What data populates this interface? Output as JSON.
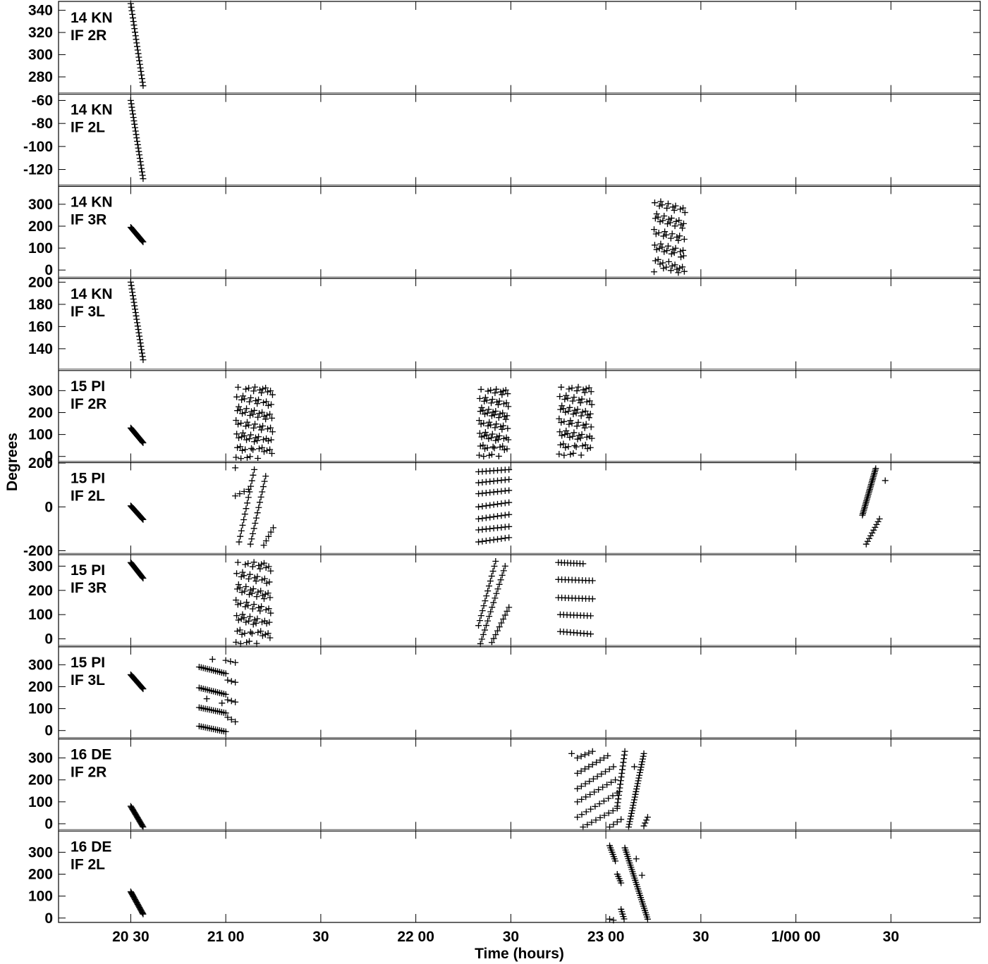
{
  "chart_data": {
    "type": "scatter",
    "xlabel": "Time (hours)",
    "ylabel": "Degrees",
    "x_units": "hours (day 0 = 0h)",
    "xlim": [
      20.12,
      24.97
    ],
    "x_ticks": [
      {
        "x": 20.5,
        "label": "20 30"
      },
      {
        "x": 21.0,
        "label": "21 00"
      },
      {
        "x": 21.5,
        "label": "30"
      },
      {
        "x": 22.0,
        "label": "22 00"
      },
      {
        "x": 22.5,
        "label": "30"
      },
      {
        "x": 23.0,
        "label": "23 00"
      },
      {
        "x": 23.5,
        "label": "30"
      },
      {
        "x": 24.0,
        "label": "1/00 00"
      },
      {
        "x": 24.5,
        "label": "30"
      }
    ],
    "marker": "+",
    "grid": false,
    "panels": [
      {
        "label1": "14 KN",
        "label2": "IF 2R",
        "ylim": [
          265,
          348
        ],
        "yticks": [
          280,
          300,
          320,
          340
        ],
        "segments": [
          {
            "x0": 20.5,
            "y0": 346,
            "x1": 20.565,
            "y1": 272,
            "n": 24
          }
        ],
        "clusters": []
      },
      {
        "label1": "14 KN",
        "label2": "IF 2L",
        "ylim": [
          -134,
          -54
        ],
        "yticks": [
          -120,
          -100,
          -80,
          -60
        ],
        "segments": [
          {
            "x0": 20.5,
            "y0": -60,
            "x1": 20.565,
            "y1": -128,
            "n": 24
          }
        ],
        "clusters": []
      },
      {
        "label1": "14 KN",
        "label2": "IF 3R",
        "ylim": [
          -35,
          385
        ],
        "yticks": [
          0,
          100,
          200,
          300
        ],
        "segments": [
          {
            "x0": 20.5,
            "y0": 195,
            "x1": 20.565,
            "y1": 128,
            "n": 22
          }
        ],
        "clusters": [
          {
            "x0": 23.25,
            "x1": 23.42,
            "ymin": -15,
            "ymax": 325,
            "cols": 8,
            "rows": 9
          }
        ]
      },
      {
        "label1": "14 KN",
        "label2": "IF 3L",
        "ylim": [
          121,
          204
        ],
        "yticks": [
          140,
          160,
          180,
          200
        ],
        "segments": [
          {
            "x0": 20.5,
            "y0": 200,
            "x1": 20.565,
            "y1": 130,
            "n": 24
          }
        ],
        "clusters": []
      },
      {
        "label1": "15 PI",
        "label2": "IF 2R",
        "ylim": [
          -25,
          395
        ],
        "yticks": [
          0,
          100,
          200,
          300
        ],
        "segments": [
          {
            "x0": 20.5,
            "y0": 130,
            "x1": 20.565,
            "y1": 62,
            "n": 22
          }
        ],
        "clusters": [
          {
            "x0": 21.05,
            "x1": 21.25,
            "ymin": -10,
            "ymax": 320,
            "cols": 9,
            "rows": 10
          },
          {
            "x0": 22.33,
            "x1": 22.49,
            "ymin": 0,
            "ymax": 310,
            "cols": 8,
            "rows": 10
          },
          {
            "x0": 22.75,
            "x1": 22.93,
            "ymin": 5,
            "ymax": 320,
            "cols": 8,
            "rows": 10
          }
        ]
      },
      {
        "label1": "15 PI",
        "label2": "IF 2L",
        "ylim": [
          -215,
          205
        ],
        "yticks": [
          -200,
          0,
          200
        ],
        "segments": [
          {
            "x0": 20.5,
            "y0": 5,
            "x1": 20.565,
            "y1": -58,
            "n": 22
          },
          {
            "x0": 21.07,
            "y0": -160,
            "x1": 21.15,
            "y1": 170,
            "n": 14
          },
          {
            "x0": 21.13,
            "y0": -170,
            "x1": 21.21,
            "y1": 140,
            "n": 14
          },
          {
            "x0": 21.2,
            "y0": -175,
            "x1": 21.25,
            "y1": -95,
            "n": 5
          },
          {
            "x0": 21.05,
            "y0": 50,
            "x1": 21.12,
            "y1": 80,
            "n": 4
          },
          {
            "x0": 24.35,
            "y0": -38,
            "x1": 24.42,
            "y1": 175,
            "n": 30
          },
          {
            "x0": 24.37,
            "y0": -170,
            "x1": 24.44,
            "y1": -55,
            "n": 10
          },
          {
            "x0": 22.33,
            "y0": 160,
            "x1": 22.49,
            "y1": 170,
            "n": 9
          },
          {
            "x0": 22.33,
            "y0": 110,
            "x1": 22.49,
            "y1": 125,
            "n": 9
          },
          {
            "x0": 22.33,
            "y0": 60,
            "x1": 22.49,
            "y1": 75,
            "n": 9
          },
          {
            "x0": 22.33,
            "y0": 0,
            "x1": 22.49,
            "y1": 20,
            "n": 9
          },
          {
            "x0": 22.33,
            "y0": -55,
            "x1": 22.49,
            "y1": -35,
            "n": 9
          },
          {
            "x0": 22.33,
            "y0": -105,
            "x1": 22.49,
            "y1": -90,
            "n": 9
          },
          {
            "x0": 22.33,
            "y0": -160,
            "x1": 22.49,
            "y1": -140,
            "n": 9
          }
        ],
        "points": [
          {
            "x": 24.47,
            "y": 120
          },
          {
            "x": 21.05,
            "y": 178
          }
        ],
        "clusters": []
      },
      {
        "label1": "15 PI",
        "label2": "IF 3R",
        "ylim": [
          -30,
          350
        ],
        "yticks": [
          0,
          100,
          200,
          300
        ],
        "segments": [
          {
            "x0": 20.5,
            "y0": 315,
            "x1": 20.565,
            "y1": 250,
            "n": 22
          },
          {
            "x0": 22.33,
            "y0": 55,
            "x1": 22.42,
            "y1": 320,
            "n": 14
          },
          {
            "x0": 22.34,
            "y0": -20,
            "x1": 22.47,
            "y1": 300,
            "n": 18
          },
          {
            "x0": 22.4,
            "y0": -15,
            "x1": 22.49,
            "y1": 130,
            "n": 10
          },
          {
            "x0": 22.75,
            "y0": 315,
            "x1": 22.88,
            "y1": 310,
            "n": 9
          },
          {
            "x0": 22.75,
            "y0": 245,
            "x1": 22.93,
            "y1": 240,
            "n": 11
          },
          {
            "x0": 22.75,
            "y0": 170,
            "x1": 22.93,
            "y1": 165,
            "n": 11
          },
          {
            "x0": 22.76,
            "y0": 100,
            "x1": 22.92,
            "y1": 95,
            "n": 10
          },
          {
            "x0": 22.76,
            "y0": 30,
            "x1": 22.92,
            "y1": 20,
            "n": 10
          }
        ],
        "clusters": [
          {
            "x0": 21.05,
            "x1": 21.24,
            "ymin": -20,
            "ymax": 320,
            "cols": 9,
            "rows": 10
          }
        ]
      },
      {
        "label1": "15 PI",
        "label2": "IF 3L",
        "ylim": [
          -35,
          385
        ],
        "yticks": [
          0,
          100,
          200,
          300
        ],
        "segments": [
          {
            "x0": 20.5,
            "y0": 255,
            "x1": 20.565,
            "y1": 190,
            "n": 22
          },
          {
            "x0": 20.86,
            "y0": 290,
            "x1": 21.0,
            "y1": 260,
            "n": 14
          },
          {
            "x0": 20.86,
            "y0": 195,
            "x1": 21.0,
            "y1": 165,
            "n": 14
          },
          {
            "x0": 20.86,
            "y0": 105,
            "x1": 21.0,
            "y1": 80,
            "n": 14
          },
          {
            "x0": 20.86,
            "y0": 20,
            "x1": 21.0,
            "y1": -5,
            "n": 14
          },
          {
            "x0": 21.0,
            "y0": 320,
            "x1": 21.05,
            "y1": 310,
            "n": 3
          },
          {
            "x0": 21.01,
            "y0": 230,
            "x1": 21.05,
            "y1": 220,
            "n": 3
          },
          {
            "x0": 21.01,
            "y0": 140,
            "x1": 21.05,
            "y1": 130,
            "n": 3
          },
          {
            "x0": 21.01,
            "y0": 60,
            "x1": 21.05,
            "y1": 40,
            "n": 3
          }
        ],
        "points": [
          {
            "x": 20.93,
            "y": 325
          },
          {
            "x": 20.9,
            "y": 145
          },
          {
            "x": 20.98,
            "y": 125
          }
        ],
        "clusters": []
      },
      {
        "label1": "16 DE",
        "label2": "IF 2R",
        "ylim": [
          -30,
          390
        ],
        "yticks": [
          0,
          100,
          200,
          300
        ],
        "segments": [
          {
            "x0": 20.5,
            "y0": 80,
            "x1": 20.565,
            "y1": -15,
            "n": 22
          },
          {
            "x0": 22.85,
            "y0": 300,
            "x1": 22.93,
            "y1": 330,
            "n": 5
          },
          {
            "x0": 22.85,
            "y0": 230,
            "x1": 23.01,
            "y1": 310,
            "n": 9
          },
          {
            "x0": 22.85,
            "y0": 160,
            "x1": 23.04,
            "y1": 260,
            "n": 10
          },
          {
            "x0": 22.85,
            "y0": 100,
            "x1": 23.05,
            "y1": 200,
            "n": 10
          },
          {
            "x0": 22.85,
            "y0": 30,
            "x1": 23.06,
            "y1": 140,
            "n": 10
          },
          {
            "x0": 22.88,
            "y0": -15,
            "x1": 23.06,
            "y1": 70,
            "n": 9
          },
          {
            "x0": 23.06,
            "y0": 80,
            "x1": 23.1,
            "y1": 330,
            "n": 16
          },
          {
            "x0": 23.12,
            "y0": -15,
            "x1": 23.2,
            "y1": 320,
            "n": 28
          },
          {
            "x0": 23.2,
            "y0": -10,
            "x1": 23.22,
            "y1": 30,
            "n": 4
          },
          {
            "x0": 23.02,
            "y0": -15,
            "x1": 23.08,
            "y1": 20,
            "n": 4
          }
        ],
        "points": [
          {
            "x": 22.82,
            "y": 320
          },
          {
            "x": 23.15,
            "y": 260
          }
        ],
        "clusters": []
      },
      {
        "label1": "16 DE",
        "label2": "IF 2L",
        "ylim": [
          -20,
          400
        ],
        "yticks": [
          0,
          100,
          200,
          300
        ],
        "segments": [
          {
            "x0": 20.5,
            "y0": 120,
            "x1": 20.565,
            "y1": 18,
            "n": 24
          },
          {
            "x0": 23.02,
            "y0": 330,
            "x1": 23.05,
            "y1": 260,
            "n": 8
          },
          {
            "x0": 23.06,
            "y0": 200,
            "x1": 23.08,
            "y1": 160,
            "n": 5
          },
          {
            "x0": 23.08,
            "y0": 40,
            "x1": 23.1,
            "y1": -15,
            "n": 6
          },
          {
            "x0": 23.1,
            "y0": 320,
            "x1": 23.22,
            "y1": -5,
            "n": 34
          },
          {
            "x0": 23.02,
            "y0": -5,
            "x1": 23.06,
            "y1": -15,
            "n": 3
          }
        ],
        "points": [
          {
            "x": 23.16,
            "y": 270
          },
          {
            "x": 23.19,
            "y": 195
          }
        ],
        "clusters": []
      }
    ]
  }
}
